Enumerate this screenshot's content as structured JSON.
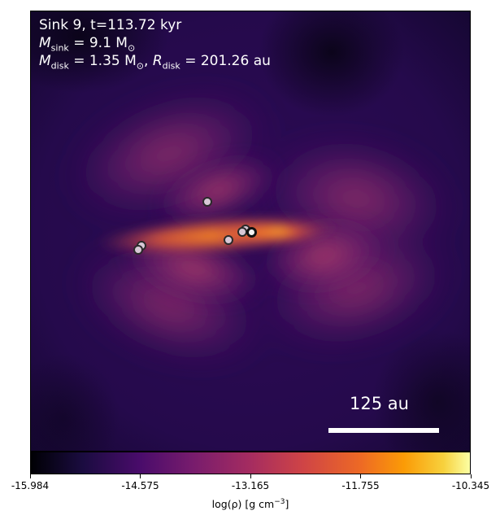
{
  "panel": {
    "title_line": "Sink 9, t=113.72 kyr",
    "sink_mass": {
      "label": "M",
      "sub": "sink",
      "value": "= 9.1 M",
      "unit_sub": "⊙"
    },
    "disk": {
      "mass_label": "M",
      "mass_sub": "disk",
      "mass_value": "= 1.35 M",
      "mass_unit_sub": "⊙",
      "radius_label": "R",
      "radius_sub": "disk",
      "radius_value": "= 201.26 au"
    },
    "scalebar_label": "125 au"
  },
  "colorbar": {
    "colormap": "inferno",
    "ticks": [
      "-15.984",
      "-14.575",
      "-13.165",
      "-11.755",
      "-10.345"
    ],
    "label_main": "log(ρ) [g cm",
    "label_sup": "−3",
    "label_close": "]"
  },
  "sinks": [
    {
      "name": "sink-particle-a",
      "highlight": false
    },
    {
      "name": "sink-particle-b",
      "highlight": false
    },
    {
      "name": "sink-particle-c",
      "highlight": false
    },
    {
      "name": "sink-particle-d",
      "highlight": false
    },
    {
      "name": "sink-particle-e",
      "highlight": false
    },
    {
      "name": "sink-particle-f",
      "highlight": false
    },
    {
      "name": "sink-particle-g",
      "highlight": true
    }
  ]
}
